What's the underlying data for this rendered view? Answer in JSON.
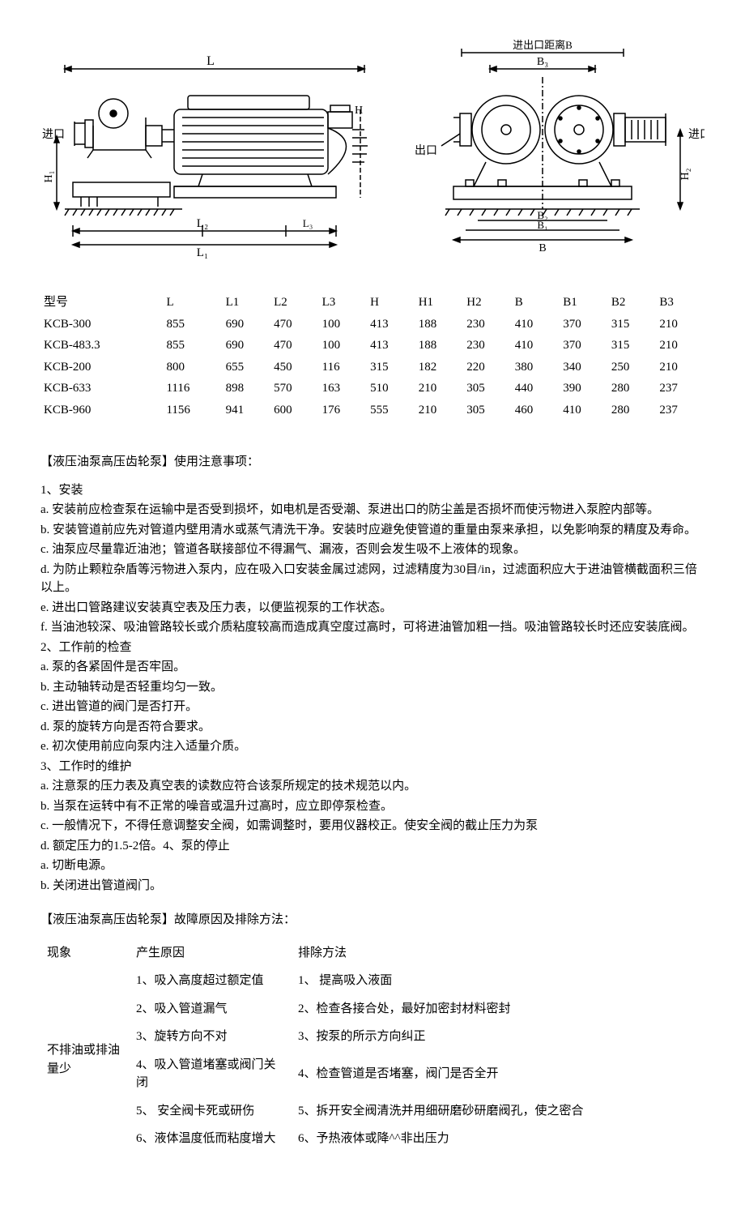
{
  "diagram": {
    "labels": {
      "inlet": "进口",
      "outlet": "出口",
      "top_right": "进出口距离B",
      "L": "L",
      "L1": "L₁",
      "L2": "L₂",
      "L3": "L₃",
      "H1": "H₁",
      "H2": "H₂",
      "B": "B",
      "B1": "B₁",
      "B2": "B₂",
      "B3": "B₃"
    },
    "stroke": "#000000",
    "bg": "#ffffff"
  },
  "dim_table": {
    "headers": [
      "型号",
      "L",
      "L1",
      "L2",
      "L3",
      "H",
      "H1",
      "H2",
      "B",
      "B1",
      "B2",
      "B3"
    ],
    "rows": [
      [
        "KCB-300",
        "855",
        "690",
        "470",
        "100",
        "413",
        "188",
        "230",
        "410",
        "370",
        "315",
        "210"
      ],
      [
        "KCB-483.3",
        "855",
        "690",
        "470",
        "100",
        "413",
        "188",
        "230",
        "410",
        "370",
        "315",
        "210"
      ],
      [
        "KCB-200",
        "800",
        "655",
        "450",
        "116",
        "315",
        "182",
        "220",
        "380",
        "340",
        "250",
        "210"
      ],
      [
        "KCB-633",
        "1116",
        "898",
        "570",
        "163",
        "510",
        "210",
        "305",
        "440",
        "390",
        "280",
        "237"
      ],
      [
        "KCB-960",
        "1156",
        "941",
        "600",
        "176",
        "555",
        "210",
        "305",
        "460",
        "410",
        "280",
        "237"
      ]
    ]
  },
  "usage_title": "【液压油泵高压齿轮泵】使用注意事项：",
  "usage_lines": [
    "1、安装",
    "a. 安装前应检查泵在运输中是否受到损坏，如电机是否受潮、泵进出口的防尘盖是否损坏而使污物进入泵腔内部等。",
    "b. 安装管道前应先对管道内壁用清水或蒸气清洗干净。安装时应避免使管道的重量由泵来承担，以免影响泵的精度及寿命。",
    "c. 油泵应尽量靠近油池；管道各联接部位不得漏气、漏液，否则会发生吸不上液体的现象。",
    "d. 为防止颗粒杂盾等污物进入泵内，应在吸入口安装金属过滤网，过滤精度为30目/in，过滤面积应大于进油管横截面积三倍以上。",
    "e. 进出口管路建议安装真空表及压力表，以便监视泵的工作状态。",
    "f. 当油池较深、吸油管路较长或介质粘度较高而造成真空度过高时，可将进油管加粗一挡。吸油管路较长时还应安装底阀。",
    "2、工作前的检查",
    "a. 泵的各紧固件是否牢固。",
    "b. 主动轴转动是否轻重均匀一致。",
    "c. 进出管道的阀门是否打开。",
    "d. 泵的旋转方向是否符合要求。",
    "e. 初次使用前应向泵内注入适量介质。",
    "3、工作时的维护",
    "a. 注意泵的压力表及真空表的读数应符合该泵所规定的技术规范以内。",
    "b. 当泵在运转中有不正常的噪音或温升过高时，应立即停泵检查。",
    "c.  一般情况下，不得任意调整安全阀，如需调整时，要用仪器校正。使安全阀的截止压力为泵",
    "d. 额定压力的1.5-2倍。4、泵的停止",
    "a. 切断电源。",
    "b. 关闭进出管道阀门。"
  ],
  "fault_title": "【液压油泵高压齿轮泵】故障原因及排除方法：",
  "fault_headers": {
    "ph": "现象",
    "cause": "产生原因",
    "fix": "排除方法"
  },
  "fault_phenomenon": "不排油或排油量少",
  "fault_rows": [
    {
      "cause": "1、吸入高度超过额定值",
      "fix": "1、 提高吸入液面"
    },
    {
      "cause": "2、吸入管道漏气",
      "fix": "2、检查各接合处，最好加密封材料密封"
    },
    {
      "cause": "3、旋转方向不对",
      "fix": "3、按泵的所示方向纠正"
    },
    {
      "cause": "4、吸入管道堵塞或阀门关闭",
      "fix": "4、检查管道是否堵塞，阀门是否全开"
    },
    {
      "cause": "5、 安全阀卡死或研伤",
      "fix": "5、拆开安全阀清洗并用细研磨砂研磨阀孔，使之密合"
    },
    {
      "cause": "6、液体温度低而粘度增大",
      "fix": "6、予热液体或降^^非出压力"
    }
  ]
}
